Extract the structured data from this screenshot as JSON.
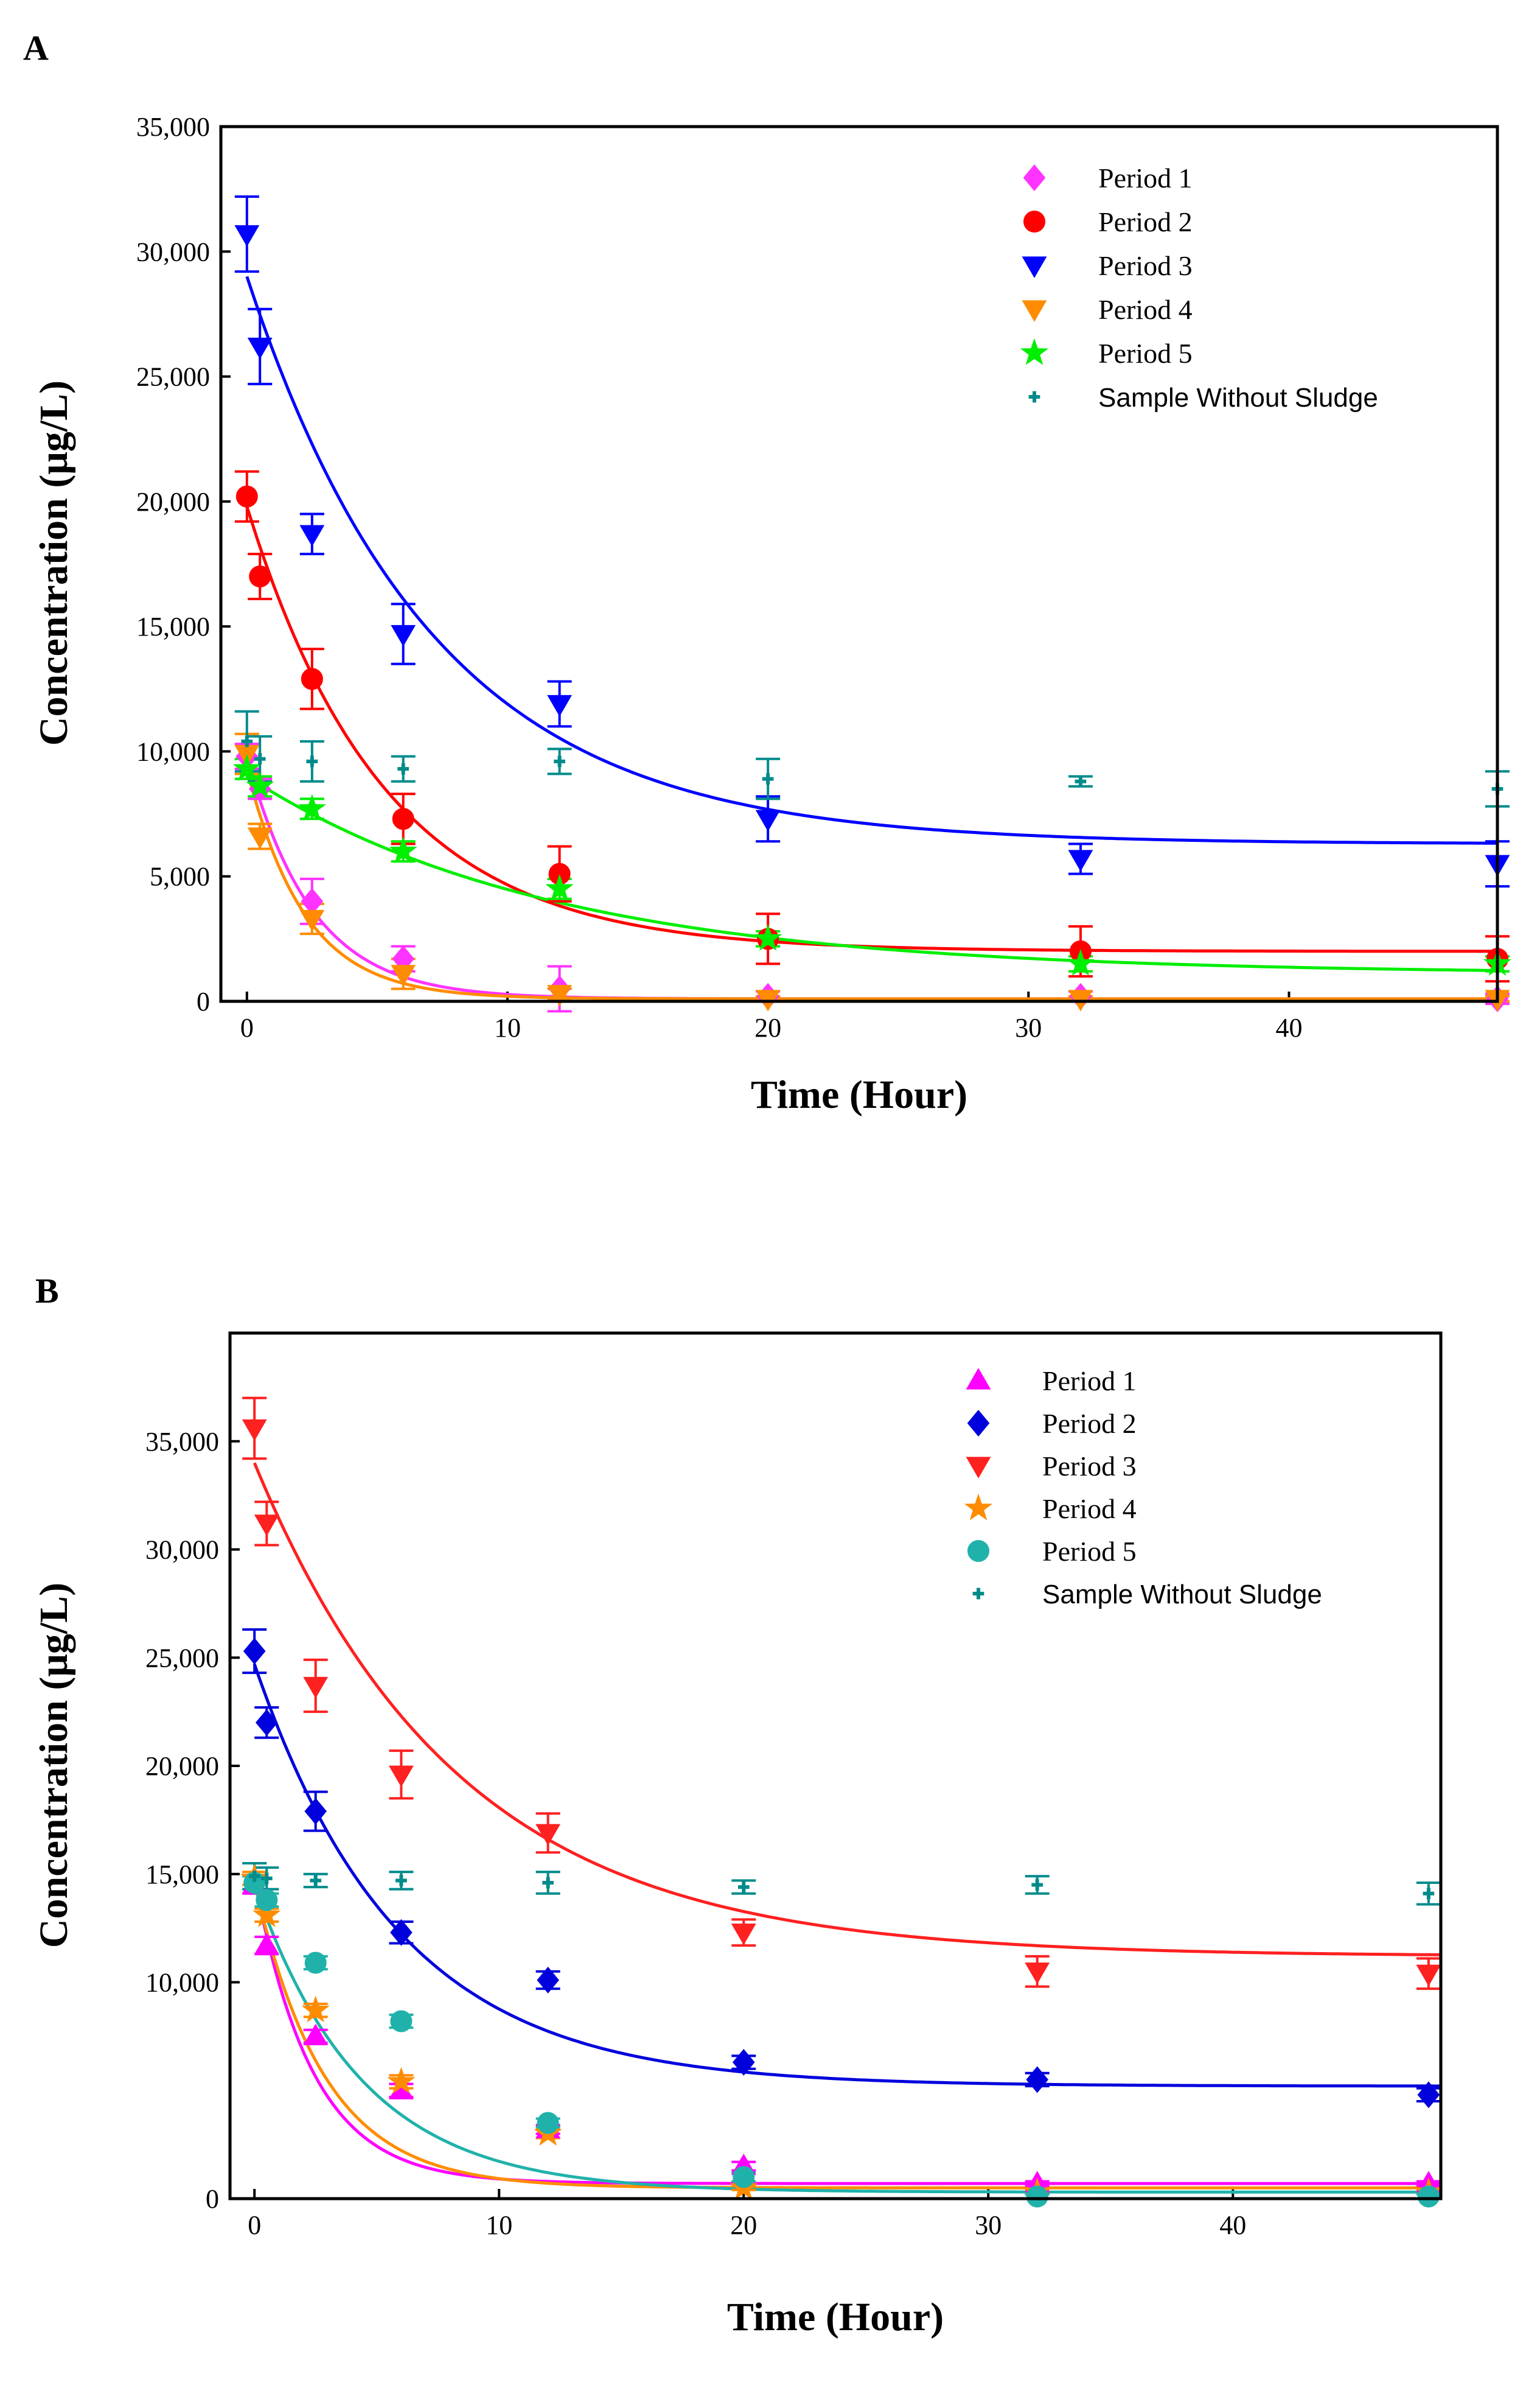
{
  "chart_data": [
    {
      "type": "scatter",
      "panel": "A",
      "xlabel": "Time (Hour)",
      "ylabel": "Concentration (μg/L)",
      "xlim": [
        -1,
        48
      ],
      "ylim": [
        0,
        35000
      ],
      "xticks": [
        0,
        10,
        20,
        30,
        40
      ],
      "xtick_labels": [
        "0",
        "10",
        "20",
        "30",
        "40"
      ],
      "yticks": [
        0,
        5000,
        10000,
        15000,
        20000,
        25000,
        30000,
        35000
      ],
      "ytick_labels": [
        "0",
        "5,000",
        "10,000",
        "15,000",
        "20,000",
        "25,000",
        "30,000",
        "35,000"
      ],
      "legend_position": "top-right",
      "series": [
        {
          "name": "Period 1",
          "marker": "diamond",
          "color": "#ff33ff",
          "x": [
            0,
            0.5,
            2.5,
            6,
            12,
            20,
            32,
            48
          ],
          "y": [
            9800,
            8500,
            4000,
            1700,
            500,
            200,
            200,
            100
          ],
          "err": [
            500,
            400,
            900,
            500,
            900,
            200,
            200,
            200
          ],
          "fit": {
            "c0": 9800,
            "k": 0.4,
            "inf": 100
          }
        },
        {
          "name": "Period 2",
          "marker": "circle",
          "color": "#ff0000",
          "x": [
            0,
            0.5,
            2.5,
            6,
            12,
            20,
            32,
            48
          ],
          "y": [
            20200,
            17000,
            12900,
            7300,
            5100,
            2500,
            2000,
            1700
          ],
          "err": [
            1000,
            900,
            1200,
            1000,
            1100,
            1000,
            1000,
            900
          ],
          "fit": {
            "c0": 19800,
            "k": 0.19,
            "inf": 2000
          }
        },
        {
          "name": "Period 3",
          "marker": "triangle-down",
          "color": "#0000ff",
          "x": [
            0,
            0.5,
            2.5,
            6,
            12,
            20,
            32,
            48
          ],
          "y": [
            30700,
            26200,
            18700,
            14700,
            11900,
            7300,
            5700,
            5500
          ],
          "err": [
            1500,
            1500,
            800,
            1200,
            900,
            900,
            600,
            900
          ],
          "fit": {
            "c0": 29000,
            "k": 0.14,
            "inf": 6300
          }
        },
        {
          "name": "Period 4",
          "marker": "triangle-down",
          "color": "#ff8c00",
          "x": [
            0,
            0.5,
            2.5,
            6,
            12,
            20,
            32,
            48
          ],
          "y": [
            9900,
            6600,
            3300,
            1100,
            300,
            100,
            100,
            100
          ],
          "err": [
            800,
            500,
            600,
            600,
            200,
            100,
            100,
            100
          ],
          "fit": {
            "c0": 9300,
            "k": 0.45,
            "inf": 100
          }
        },
        {
          "name": "Period 5",
          "marker": "star",
          "color": "#00ee00",
          "x": [
            0,
            0.5,
            2.5,
            6,
            12,
            20,
            32,
            48
          ],
          "y": [
            9300,
            8600,
            7700,
            6000,
            4500,
            2500,
            1500,
            1500
          ],
          "err": [
            400,
            400,
            400,
            400,
            400,
            300,
            300,
            300
          ],
          "fit": {
            "c0": 9000,
            "k": 0.085,
            "inf": 1100
          }
        },
        {
          "name": "Sample Without Sludge",
          "marker": "plus",
          "color": "#008b8b",
          "x": [
            0,
            0.5,
            2.5,
            6,
            12,
            20,
            32,
            48
          ],
          "y": [
            10400,
            9700,
            9600,
            9300,
            9600,
            8900,
            8800,
            8500
          ],
          "err": [
            1200,
            900,
            800,
            500,
            500,
            800,
            200,
            700
          ]
        }
      ]
    },
    {
      "type": "scatter",
      "panel": "B",
      "xlabel": "Time (Hour)",
      "ylabel": "Concentration (μg/L)",
      "xlim": [
        -1,
        48.5
      ],
      "ylim": [
        0,
        40000
      ],
      "xticks": [
        0,
        10,
        20,
        30,
        40
      ],
      "xtick_labels": [
        "0",
        "10",
        "20",
        "30",
        "40"
      ],
      "yticks": [
        0,
        10000,
        15000,
        20000,
        25000,
        30000,
        35000
      ],
      "ytick_labels": [
        "0",
        "10,000",
        "15,000",
        "20,000",
        "25,000",
        "30,000",
        "35,000"
      ],
      "legend_position": "top-right",
      "series": [
        {
          "name": "Period 1",
          "marker": "triangle-up",
          "color": "#ff00ff",
          "x": [
            0,
            0.5,
            2.5,
            6,
            12,
            20,
            32,
            48
          ],
          "y": [
            14500,
            11700,
            7500,
            5000,
            3200,
            1500,
            700,
            700
          ],
          "err": [
            400,
            400,
            300,
            300,
            200,
            200,
            100,
            100
          ],
          "fit": {
            "c0": 14800,
            "k": 0.42,
            "inf": 700
          }
        },
        {
          "name": "Period 2",
          "marker": "diamond",
          "color": "#0000dd",
          "x": [
            0,
            0.5,
            2.5,
            6,
            12,
            20,
            32,
            48
          ],
          "y": [
            25300,
            22000,
            17900,
            12300,
            10100,
            6300,
            5500,
            4800
          ],
          "err": [
            1000,
            700,
            900,
            500,
            400,
            300,
            300,
            300
          ],
          "fit": {
            "c0": 24700,
            "k": 0.17,
            "inf": 5200
          }
        },
        {
          "name": "Period 3",
          "marker": "triangle-down",
          "color": "#ff2020",
          "x": [
            0,
            0.5,
            2.5,
            6,
            12,
            20,
            32,
            48
          ],
          "y": [
            35600,
            31200,
            23700,
            19600,
            16900,
            12300,
            10500,
            10400
          ],
          "err": [
            1400,
            1000,
            1200,
            1100,
            900,
            600,
            700,
            700
          ],
          "fit": {
            "c0": 34000,
            "k": 0.12,
            "inf": 11200
          }
        },
        {
          "name": "Period 4",
          "marker": "star",
          "color": "#ff8c00",
          "x": [
            0,
            0.5,
            2.5,
            6,
            12,
            20,
            32,
            48
          ],
          "y": [
            14800,
            13100,
            8700,
            5400,
            3000,
            500,
            300,
            300
          ],
          "err": [
            300,
            300,
            300,
            300,
            200,
            100,
            100,
            100
          ],
          "fit": {
            "c0": 14600,
            "k": 0.35,
            "inf": 500
          }
        },
        {
          "name": "Period 5",
          "marker": "circle",
          "color": "#20b2aa",
          "x": [
            0,
            0.5,
            2.5,
            6,
            12,
            20,
            32,
            48
          ],
          "y": [
            14600,
            13800,
            10900,
            8200,
            3500,
            1000,
            100,
            100
          ],
          "err": [
            300,
            300,
            300,
            300,
            200,
            200,
            100,
            100
          ],
          "fit": {
            "c0": 14500,
            "k": 0.23,
            "inf": 300
          }
        },
        {
          "name": "Sample Without Sludge",
          "marker": "plus",
          "color": "#008b8b",
          "x": [
            0,
            0.5,
            2.5,
            6,
            12,
            20,
            32,
            48
          ],
          "y": [
            14900,
            14800,
            14700,
            14700,
            14600,
            14400,
            14500,
            14100
          ],
          "err": [
            600,
            500,
            300,
            400,
            500,
            300,
            400,
            500
          ]
        }
      ]
    }
  ]
}
